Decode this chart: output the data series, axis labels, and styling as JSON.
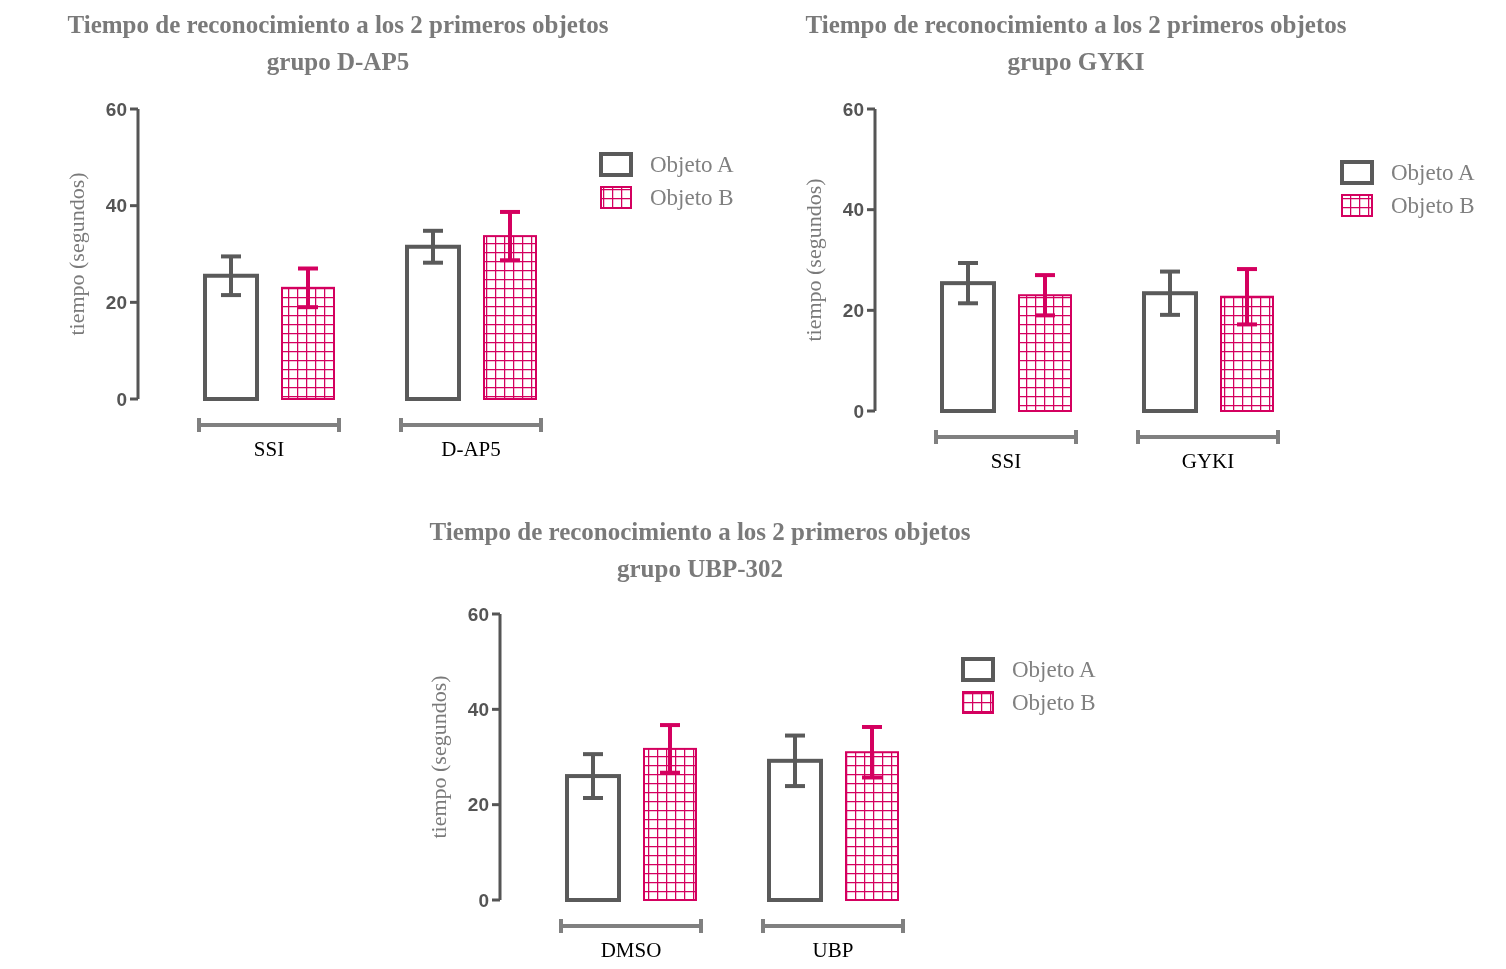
{
  "chart_data": [
    {
      "type": "bar",
      "title": "Tiempo de reconocimiento a los 2 primeros objetos\ngrupo D-AP5",
      "ylabel": "tiempo (segundos)",
      "categories": [
        "SSI",
        "D-AP5"
      ],
      "ylim": [
        0,
        60
      ],
      "yticks": [
        0,
        20,
        40,
        60
      ],
      "legend": "top right",
      "series": [
        {
          "name": "Objeto A",
          "color": "#5a5a5a",
          "values": [
            25.5,
            31.5
          ],
          "errors": [
            4,
            3.3
          ]
        },
        {
          "name": "Objeto B",
          "color": "#d4005f",
          "values": [
            23,
            33.7
          ],
          "errors": [
            4,
            5
          ]
        }
      ]
    },
    {
      "type": "bar",
      "title": "Tiempo de reconocimiento a los 2 primeros objetos\ngrupo GYKI",
      "ylabel": "tiempo (segundos)",
      "categories": [
        "SSI",
        "GYKI"
      ],
      "ylim": [
        0,
        60
      ],
      "yticks": [
        0,
        20,
        40,
        60
      ],
      "legend": "top right",
      "series": [
        {
          "name": "Objeto A",
          "color": "#5a5a5a",
          "values": [
            25.4,
            23.4
          ],
          "errors": [
            4,
            4.3
          ]
        },
        {
          "name": "Objeto B",
          "color": "#d4005f",
          "values": [
            23,
            22.7
          ],
          "errors": [
            4,
            5.5
          ]
        }
      ]
    },
    {
      "type": "bar",
      "title": "Tiempo de reconocimiento a los 2 primeros objetos\ngrupo UBP-302",
      "ylabel": "tiempo (segundos)",
      "categories": [
        "DMSO",
        "UBP"
      ],
      "ylim": [
        0,
        60
      ],
      "yticks": [
        0,
        20,
        40,
        60
      ],
      "legend": "top right",
      "series": [
        {
          "name": "Objeto A",
          "color": "#5a5a5a",
          "values": [
            26,
            29.2
          ],
          "errors": [
            4.6,
            5.3
          ]
        },
        {
          "name": "Objeto B",
          "color": "#d4005f",
          "values": [
            31.7,
            31
          ],
          "errors": [
            5,
            5.3
          ]
        }
      ]
    }
  ]
}
